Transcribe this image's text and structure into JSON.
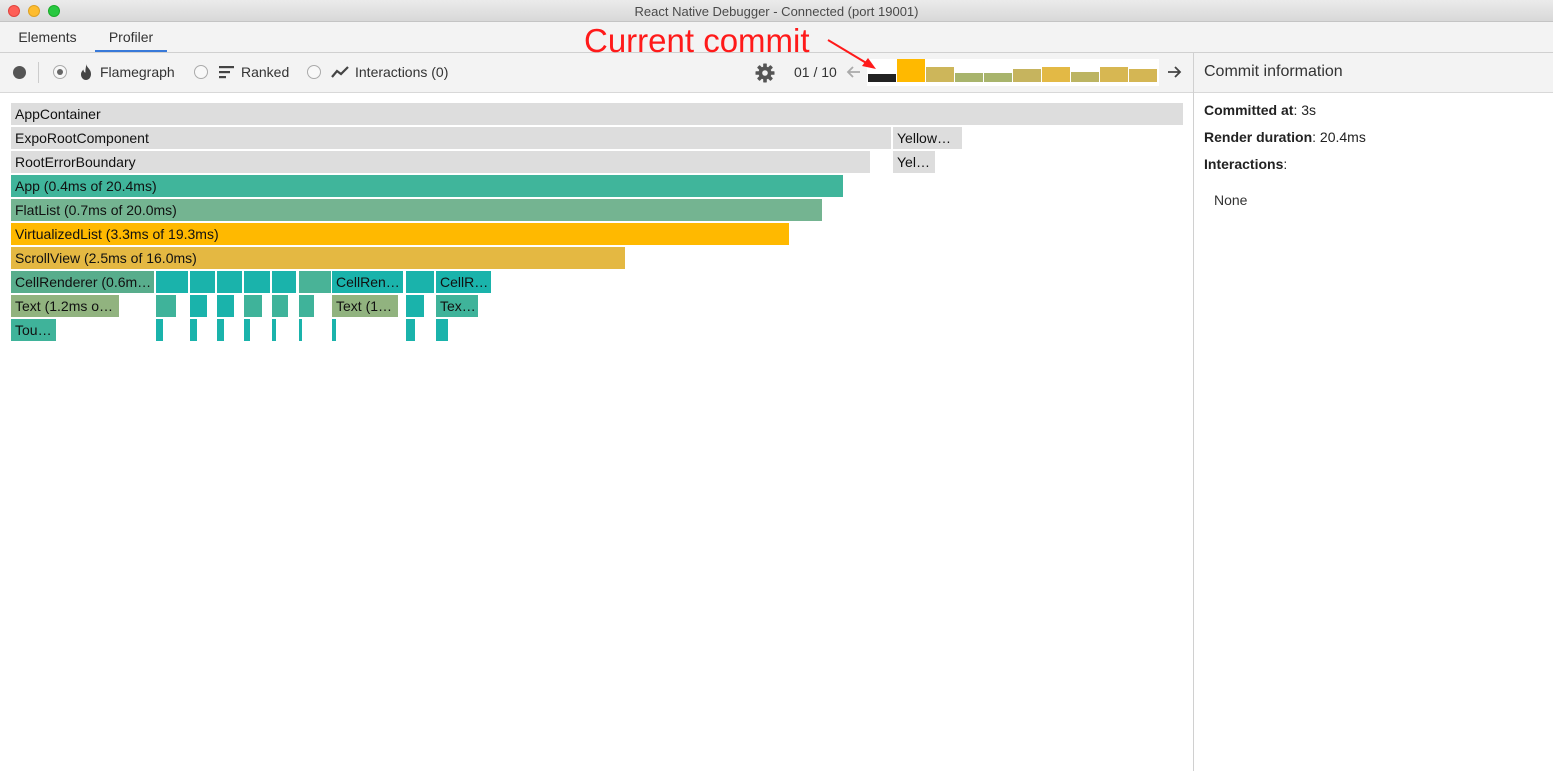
{
  "window": {
    "title": "React Native Debugger - Connected (port 19001)"
  },
  "tabs": [
    {
      "label": "Elements"
    },
    {
      "label": "Profiler"
    }
  ],
  "toolbar": {
    "flamegraph_label": "Flamegraph",
    "ranked_label": "Ranked",
    "interactions_label": "Interactions (0)",
    "commit_counter": "01 / 10"
  },
  "annotation": {
    "text": "Current commit",
    "color": "#ff1a1a"
  },
  "commits": [
    {
      "height_frac": 0.35,
      "color": "#222222",
      "selected": true
    },
    {
      "height_frac": 1.0,
      "color": "#ffb900",
      "selected": false
    },
    {
      "height_frac": 0.65,
      "color": "#cdb65a",
      "selected": false
    },
    {
      "height_frac": 0.4,
      "color": "#a8b46c",
      "selected": false
    },
    {
      "height_frac": 0.4,
      "color": "#a8b46c",
      "selected": false
    },
    {
      "height_frac": 0.55,
      "color": "#c6b45e",
      "selected": false
    },
    {
      "height_frac": 0.65,
      "color": "#e3b945",
      "selected": false
    },
    {
      "height_frac": 0.45,
      "color": "#bcb462",
      "selected": false
    },
    {
      "height_frac": 0.65,
      "color": "#d7b752",
      "selected": false
    },
    {
      "height_frac": 0.55,
      "color": "#d4b654",
      "selected": false
    }
  ],
  "flamegraph": {
    "rows": [
      [
        {
          "label": "AppContainer",
          "color": "#dddddd"
        }
      ],
      [
        {
          "label": "ExpoRootComponent",
          "color": "#dddddd"
        },
        {
          "label": "Yellow…",
          "color": "#dddddd"
        }
      ],
      [
        {
          "label": "RootErrorBoundary",
          "color": "#dddddd"
        },
        {
          "label": "Yel…",
          "color": "#dddddd"
        }
      ],
      [
        {
          "label": "App (0.4ms of 20.4ms)",
          "color": "#40b59b"
        }
      ],
      [
        {
          "label": "FlatList (0.7ms of 20.0ms)",
          "color": "#74b491"
        }
      ],
      [
        {
          "label": "VirtualizedList (3.3ms of 19.3ms)",
          "color": "#ffb900"
        }
      ],
      [
        {
          "label": "ScrollView (2.5ms of 16.0ms)",
          "color": "#e4b842"
        }
      ],
      [
        {
          "label": "CellRenderer (0.6m…",
          "color": "#58ad8c"
        },
        {
          "label": "",
          "color": "#1ab3ab"
        },
        {
          "label": "",
          "color": "#1ab3ab"
        },
        {
          "label": "",
          "color": "#1ab3ab"
        },
        {
          "label": "",
          "color": "#1ab3ab"
        },
        {
          "label": "",
          "color": "#1ab3ab"
        },
        {
          "label": "",
          "color": "#49b397"
        },
        {
          "label": "CellRen…",
          "color": "#1ab3ab"
        },
        {
          "label": "",
          "color": "#1ab3ab"
        },
        {
          "label": "CellR…",
          "color": "#1ab3ab"
        }
      ],
      [
        {
          "label": "Text (1.2ms o…",
          "color": "#91b37f"
        },
        {
          "label": "",
          "color": "#3fb39a"
        },
        {
          "label": "",
          "color": "#1ab3ab"
        },
        {
          "label": "",
          "color": "#1ab3ab"
        },
        {
          "label": "",
          "color": "#3fb39a"
        },
        {
          "label": "",
          "color": "#3fb39a"
        },
        {
          "label": "",
          "color": "#3fb39a"
        },
        {
          "label": "Text (1…",
          "color": "#91b37f"
        },
        {
          "label": "",
          "color": "#1ab3ab"
        },
        {
          "label": "Tex…",
          "color": "#3fb39a"
        }
      ],
      [
        {
          "label": "Tou…",
          "color": "#3fb39a"
        },
        {
          "label": "",
          "color": "#1ab3ab"
        },
        {
          "label": "",
          "color": "#1ab3ab"
        },
        {
          "label": "",
          "color": "#1ab3ab"
        },
        {
          "label": "",
          "color": "#1ab3ab"
        },
        {
          "label": "",
          "color": "#1ab3ab"
        },
        {
          "label": "",
          "color": "#1ab3ab"
        },
        {
          "label": "",
          "color": "#1ab3ab"
        },
        {
          "label": "",
          "color": "#1ab3ab"
        },
        {
          "label": "",
          "color": "#1ab3ab"
        }
      ]
    ]
  },
  "sidebar": {
    "title": "Commit information",
    "committed_label": "Committed at",
    "committed_value": ": 3s",
    "render_label": "Render duration",
    "render_value": ": 20.4ms",
    "interactions_label": "Interactions",
    "interactions_colon": ":",
    "interactions_value": "None"
  }
}
